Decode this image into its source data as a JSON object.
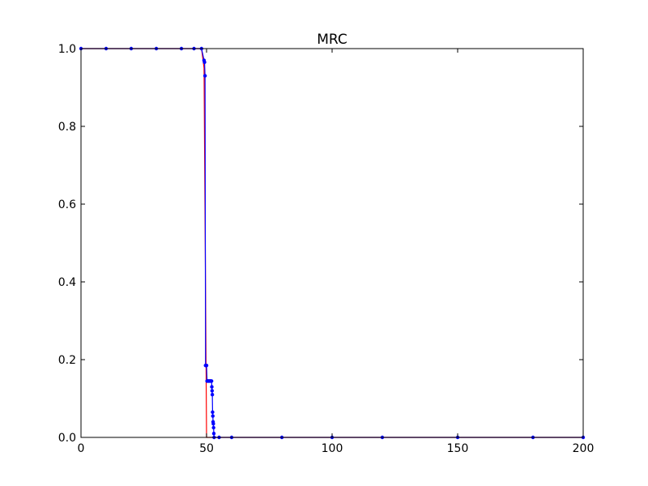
{
  "chart_data": {
    "type": "line",
    "title": "MRC",
    "xlabel": "",
    "ylabel": "",
    "xlim": [
      0,
      200
    ],
    "ylim": [
      0.0,
      1.0
    ],
    "x_ticks": [
      0,
      50,
      100,
      150,
      200
    ],
    "x_tick_labels": [
      "0",
      "50",
      "100",
      "150",
      "200"
    ],
    "y_ticks": [
      0.0,
      0.2,
      0.4,
      0.6,
      0.8,
      1.0
    ],
    "y_tick_labels": [
      "0.0",
      "0.2",
      "0.4",
      "0.6",
      "0.8",
      "1.0"
    ],
    "grid": false,
    "legend": false,
    "series": [
      {
        "color": "#ff0000",
        "marker": false,
        "x": [
          0,
          48,
          49,
          50,
          200
        ],
        "y": [
          1.0,
          1.0,
          0.95,
          0.0,
          0.0
        ]
      },
      {
        "color": "#0000ff",
        "marker": true,
        "x": [
          0,
          10,
          20,
          30,
          40,
          45,
          48,
          49.0,
          49.2,
          49.4,
          49.6,
          49.8,
          50.0,
          50.2,
          50.4,
          50.6,
          50.8,
          51.0,
          51.2,
          51.4,
          51.6,
          51.8,
          52.0,
          52.1,
          52.2,
          52.3,
          52.4,
          52.5,
          52.6,
          52.7,
          52.8,
          52.9,
          53.0,
          55,
          60,
          80,
          100,
          120,
          150,
          180,
          200
        ],
        "y": [
          1.0,
          1.0,
          1.0,
          1.0,
          1.0,
          1.0,
          1.0,
          0.97,
          0.965,
          0.93,
          0.185,
          0.185,
          0.185,
          0.145,
          0.145,
          0.145,
          0.145,
          0.145,
          0.145,
          0.145,
          0.145,
          0.145,
          0.145,
          0.13,
          0.12,
          0.11,
          0.065,
          0.055,
          0.04,
          0.035,
          0.025,
          0.01,
          0.0,
          0.0,
          0.0,
          0.0,
          0.0,
          0.0,
          0.0,
          0.0,
          0.0
        ]
      }
    ]
  }
}
